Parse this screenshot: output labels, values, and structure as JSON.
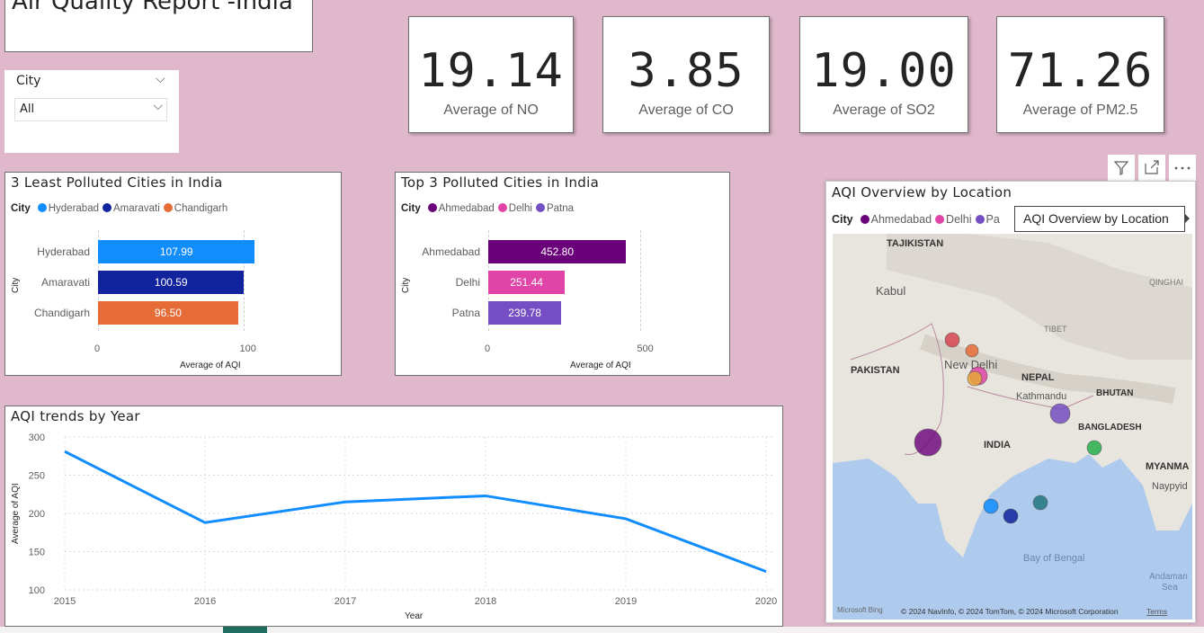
{
  "report": {
    "title": "Air Quality Report -India"
  },
  "slicer": {
    "label": "City",
    "value": "All"
  },
  "kpis": [
    {
      "value": "19.14",
      "caption": "Average of NO"
    },
    {
      "value": "3.85",
      "caption": "Average of CO"
    },
    {
      "value": "19.00",
      "caption": "Average of SO2"
    },
    {
      "value": "71.26",
      "caption": "Average of PM2.5"
    }
  ],
  "visual_header": {
    "filter_icon": "filter-icon",
    "focus_icon": "focus-mode-icon",
    "more_icon": "more-options-icon"
  },
  "least_polluted": {
    "title": "3 Least Polluted Cities in India",
    "legend_title": "City",
    "legend": [
      "Hyderabad",
      "Amaravati",
      "Chandigarh"
    ],
    "ylabel": "City",
    "xlabel": "Average of AQI",
    "ticks": [
      "0",
      "100"
    ]
  },
  "top_polluted": {
    "title": "Top 3 Polluted Cities in India",
    "legend_title": "City",
    "legend": [
      "Ahmedabad",
      "Delhi",
      "Patna"
    ],
    "ylabel": "City",
    "xlabel": "Average of AQI",
    "ticks": [
      "0",
      "500"
    ]
  },
  "trend": {
    "title": "AQI trends by Year",
    "xlabel": "Year",
    "ylabel": "Average of AQI"
  },
  "map": {
    "title": "AQI Overview by Location",
    "legend_title": "City",
    "legend": [
      "Ahmedabad",
      "Delhi",
      "Pa"
    ],
    "tooltip": "AQI Overview by Location",
    "places": {
      "tajikistan": "TAJIKISTAN",
      "kabul": "Kabul",
      "qinghai": "QINGHAI",
      "tibet": "TIBET",
      "pakistan": "PAKISTAN",
      "newdelhi": "New Delhi",
      "nepal": "NEPAL",
      "kathmandu": "Kathmandu",
      "bhutan": "BHUTAN",
      "bangladesh": "BANGLADESH",
      "india": "INDIA",
      "myanmar": "MYANMA",
      "naypyidaw": "Naypyid",
      "bay": "Bay of Bengal",
      "andaman": "Andaman",
      "sea": "Sea"
    },
    "footer_logo": "Microsoft Bing",
    "copyright": "© 2024 NavInfo, © 2024 TomTom, © 2024 Microsoft Corporation",
    "terms": "Terms"
  },
  "colors": {
    "hyderabad": "#118dff",
    "amaravati": "#12239e",
    "chandigarh": "#e66c37",
    "ahmedabad": "#6b007b",
    "delhi": "#e044a7",
    "patna": "#744ec2",
    "line": "#118dff"
  },
  "chart_data": [
    {
      "type": "bar",
      "orientation": "horizontal",
      "title": "3 Least Polluted Cities in India",
      "categories": [
        "Hyderabad",
        "Amaravati",
        "Chandigarh"
      ],
      "values": [
        107.99,
        100.59,
        96.5
      ],
      "labels": [
        "107.99",
        "100.59",
        "96.50"
      ],
      "xlabel": "Average of AQI",
      "ylabel": "City",
      "xlim": [
        0,
        130
      ],
      "legend_placement": "top-left"
    },
    {
      "type": "bar",
      "orientation": "horizontal",
      "title": "Top 3 Polluted Cities in India",
      "categories": [
        "Ahmedabad",
        "Delhi",
        "Patna"
      ],
      "values": [
        452.8,
        251.44,
        239.78
      ],
      "labels": [
        "452.80",
        "251.44",
        "239.78"
      ],
      "xlabel": "Average of AQI",
      "ylabel": "City",
      "xlim": [
        0,
        620
      ],
      "legend_placement": "top-left"
    },
    {
      "type": "line",
      "title": "AQI trends by Year",
      "x": [
        2015,
        2016,
        2017,
        2018,
        2019,
        2020
      ],
      "y": [
        281,
        188,
        215,
        223,
        193,
        124
      ],
      "xlabel": "Year",
      "ylabel": "Average of AQI",
      "ylim": [
        100,
        300
      ],
      "yticks": [
        100,
        150,
        200,
        250,
        300
      ],
      "grid": true
    }
  ]
}
